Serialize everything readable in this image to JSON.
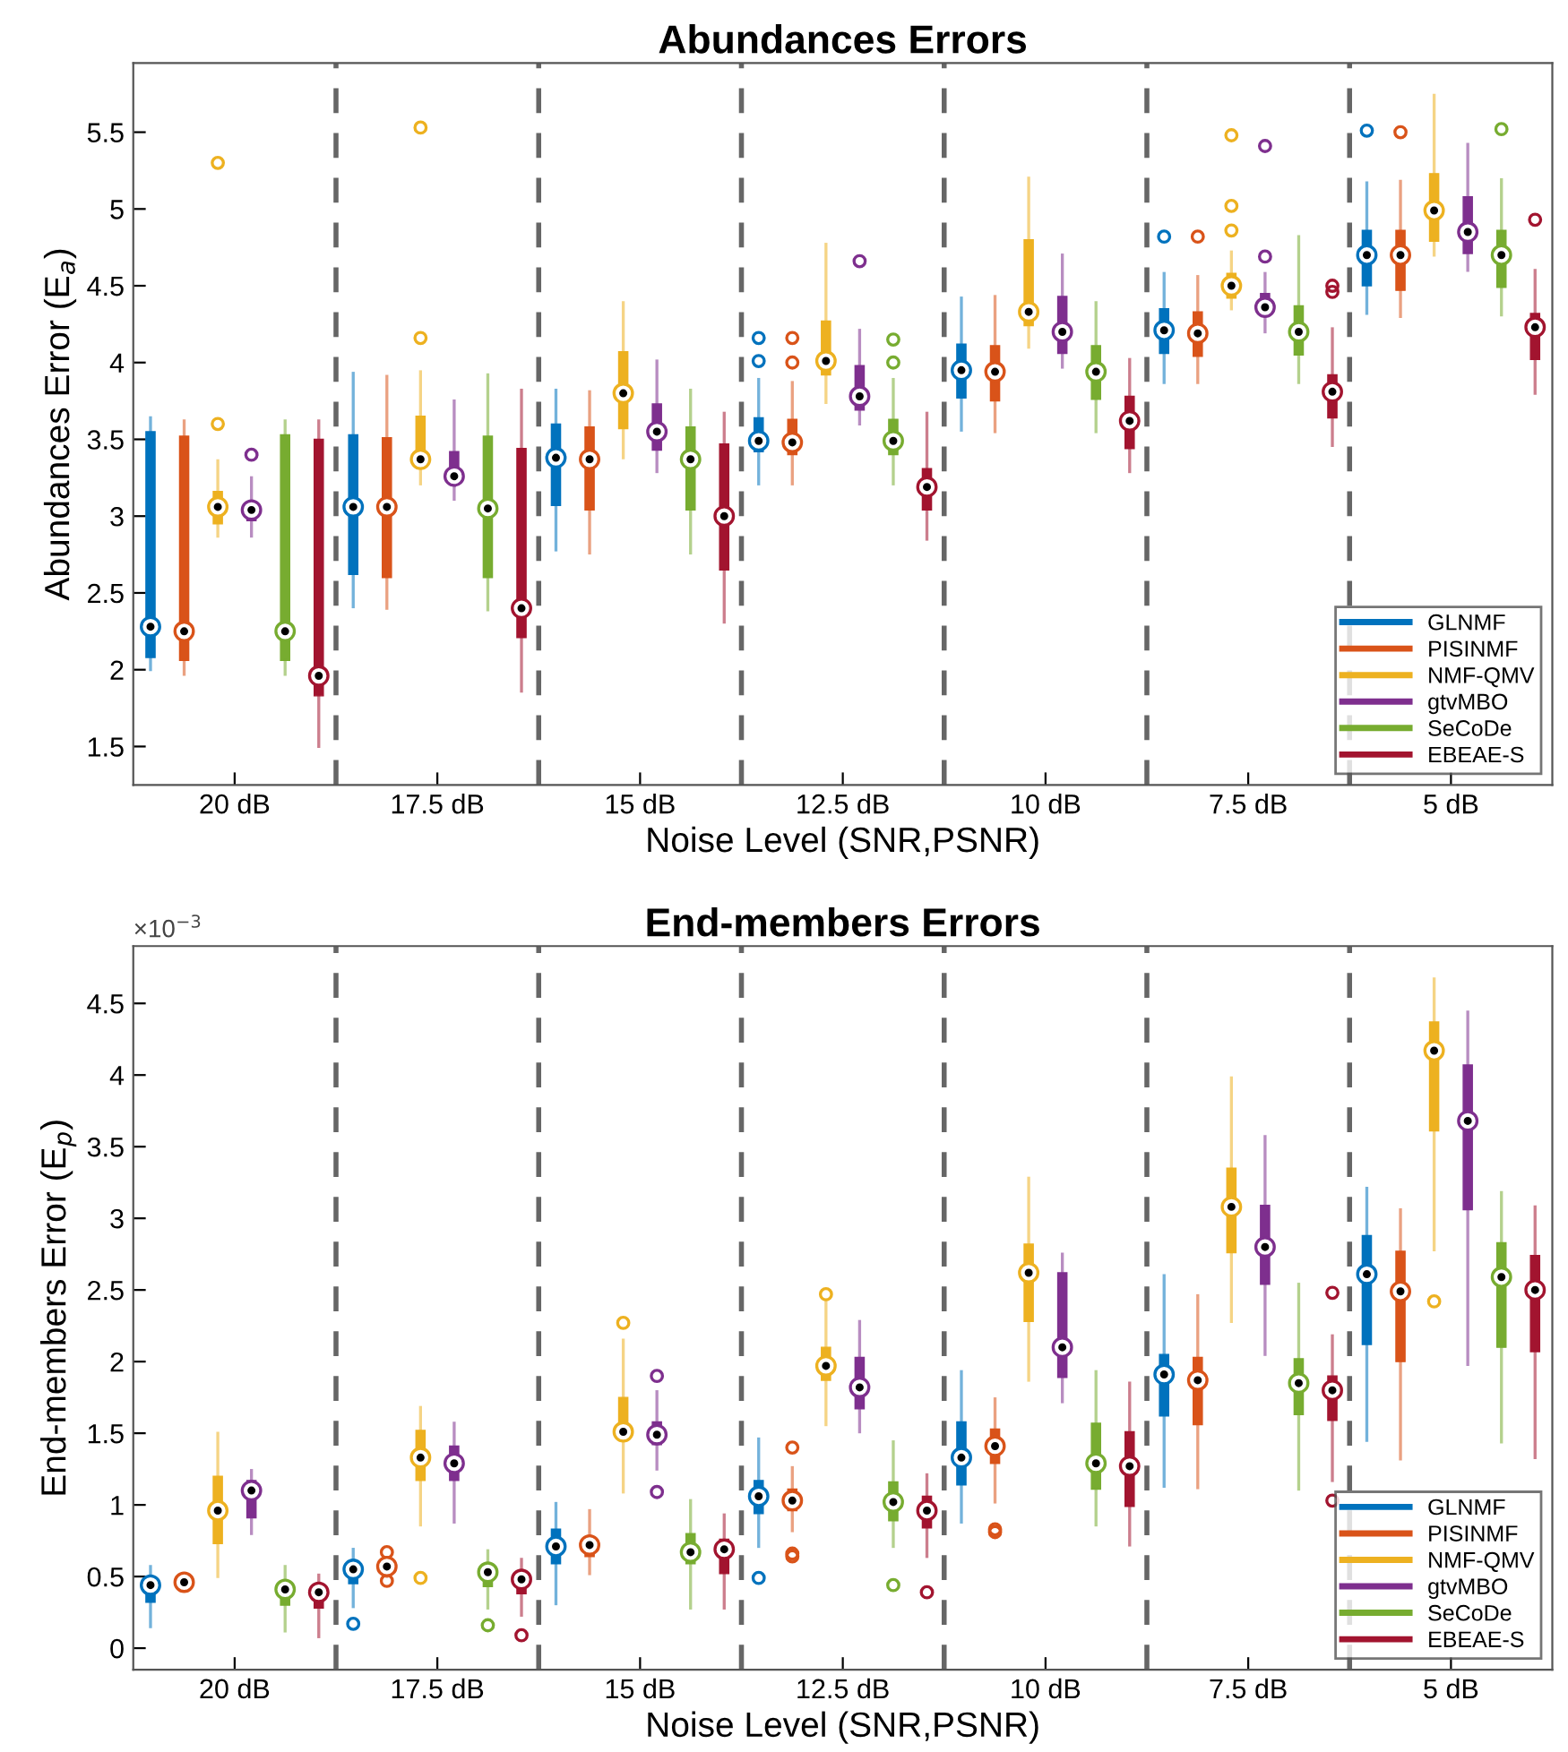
{
  "chart_data": [
    {
      "type": "box",
      "title": "Abundances Errors",
      "xlabel": "Noise Level (SNR,PSNR)",
      "ylabel": "Abundances Error (E$_{a}$)",
      "categories": [
        "20 dB",
        "17.5 dB",
        "15 dB",
        "12.5 dB",
        "10 dB",
        "7.5 dB",
        "5 dB"
      ],
      "ylim": [
        1.25,
        5.95
      ],
      "yticks": [
        1.5,
        2,
        2.5,
        3,
        3.5,
        4,
        4.5,
        5,
        5.5
      ],
      "grid": false,
      "legend": "bottom right",
      "marker": "circle",
      "series": [
        {
          "name": "GLNMF",
          "color": "#0072bd",
          "boxes": [
            {
              "low": 2.0,
              "q1": 2.08,
              "median": 2.28,
              "q3": 3.55,
              "high": 3.64
            },
            {
              "low": 2.41,
              "q1": 2.62,
              "median": 3.06,
              "q3": 3.53,
              "high": 3.93
            },
            {
              "low": 2.78,
              "q1": 3.07,
              "median": 3.38,
              "q3": 3.6,
              "high": 3.82
            },
            {
              "low": 3.21,
              "q1": 3.42,
              "median": 3.49,
              "q3": 3.64,
              "high": 3.89,
              "outliers": [
                4.01,
                4.16
              ]
            },
            {
              "low": 3.56,
              "q1": 3.77,
              "median": 3.95,
              "q3": 4.12,
              "high": 4.42
            },
            {
              "low": 3.87,
              "q1": 4.06,
              "median": 4.21,
              "q3": 4.35,
              "high": 4.58,
              "outliers": [
                4.82
              ]
            },
            {
              "low": 4.32,
              "q1": 4.5,
              "median": 4.7,
              "q3": 4.86,
              "high": 5.17,
              "outliers": [
                5.51
              ]
            }
          ]
        },
        {
          "name": "PISINMF",
          "color": "#d95319",
          "boxes": [
            {
              "low": 1.97,
              "q1": 2.06,
              "median": 2.25,
              "q3": 3.52,
              "high": 3.62
            },
            {
              "low": 2.4,
              "q1": 2.6,
              "median": 3.06,
              "q3": 3.51,
              "high": 3.91
            },
            {
              "low": 2.76,
              "q1": 3.04,
              "median": 3.37,
              "q3": 3.58,
              "high": 3.81
            },
            {
              "low": 3.21,
              "q1": 3.4,
              "median": 3.48,
              "q3": 3.63,
              "high": 3.87,
              "outliers": [
                4.0,
                4.16
              ]
            },
            {
              "low": 3.55,
              "q1": 3.75,
              "median": 3.94,
              "q3": 4.11,
              "high": 4.43
            },
            {
              "low": 3.87,
              "q1": 4.04,
              "median": 4.19,
              "q3": 4.33,
              "high": 4.56,
              "outliers": [
                4.82
              ]
            },
            {
              "low": 4.3,
              "q1": 4.47,
              "median": 4.7,
              "q3": 4.86,
              "high": 5.18,
              "outliers": [
                5.5
              ]
            }
          ]
        },
        {
          "name": "NMF-QMV",
          "color": "#edb120",
          "boxes": [
            {
              "low": 2.87,
              "q1": 2.95,
              "median": 3.06,
              "q3": 3.16,
              "high": 3.36,
              "outliers": [
                3.6,
                5.3
              ]
            },
            {
              "low": 3.21,
              "q1": 3.33,
              "median": 3.37,
              "q3": 3.65,
              "high": 3.94,
              "outliers": [
                4.16,
                5.53
              ]
            },
            {
              "low": 3.38,
              "q1": 3.57,
              "median": 3.8,
              "q3": 4.07,
              "high": 4.39
            },
            {
              "low": 3.74,
              "q1": 3.92,
              "median": 4.01,
              "q3": 4.27,
              "high": 4.77
            },
            {
              "low": 4.1,
              "q1": 4.24,
              "median": 4.33,
              "q3": 4.8,
              "high": 5.2
            },
            {
              "low": 4.35,
              "q1": 4.42,
              "median": 4.5,
              "q3": 4.58,
              "high": 4.72,
              "outliers": [
                4.86,
                5.02,
                5.48
              ]
            },
            {
              "low": 4.7,
              "q1": 4.79,
              "median": 4.99,
              "q3": 5.23,
              "high": 5.74
            }
          ]
        },
        {
          "name": "gtvMBO",
          "color": "#7e2f8e",
          "boxes": [
            {
              "low": 2.87,
              "q1": 2.97,
              "median": 3.04,
              "q3": 3.08,
              "high": 3.25,
              "outliers": [
                3.4
              ]
            },
            {
              "low": 3.11,
              "q1": 3.21,
              "median": 3.26,
              "q3": 3.42,
              "high": 3.75
            },
            {
              "low": 3.29,
              "q1": 3.43,
              "median": 3.55,
              "q3": 3.73,
              "high": 4.01
            },
            {
              "low": 3.6,
              "q1": 3.69,
              "median": 3.78,
              "q3": 3.98,
              "high": 4.21,
              "outliers": [
                4.66
              ]
            },
            {
              "low": 3.97,
              "q1": 4.06,
              "median": 4.2,
              "q3": 4.43,
              "high": 4.7
            },
            {
              "low": 4.2,
              "q1": 4.32,
              "median": 4.36,
              "q3": 4.45,
              "high": 4.58,
              "outliers": [
                4.69,
                5.41
              ]
            },
            {
              "low": 4.6,
              "q1": 4.71,
              "median": 4.85,
              "q3": 5.08,
              "high": 5.42
            }
          ]
        },
        {
          "name": "SeCoDe",
          "color": "#77ac30",
          "boxes": [
            {
              "low": 1.97,
              "q1": 2.06,
              "median": 2.25,
              "q3": 3.53,
              "high": 3.62
            },
            {
              "low": 2.39,
              "q1": 2.6,
              "median": 3.05,
              "q3": 3.52,
              "high": 3.92
            },
            {
              "low": 2.76,
              "q1": 3.04,
              "median": 3.37,
              "q3": 3.58,
              "high": 3.82
            },
            {
              "low": 3.21,
              "q1": 3.4,
              "median": 3.49,
              "q3": 3.63,
              "high": 3.89,
              "outliers": [
                4.0,
                4.15
              ]
            },
            {
              "low": 3.55,
              "q1": 3.76,
              "median": 3.94,
              "q3": 4.11,
              "high": 4.39
            },
            {
              "low": 3.87,
              "q1": 4.05,
              "median": 4.2,
              "q3": 4.37,
              "high": 4.82
            },
            {
              "low": 4.31,
              "q1": 4.49,
              "median": 4.7,
              "q3": 4.86,
              "high": 5.19,
              "outliers": [
                5.52
              ]
            }
          ]
        },
        {
          "name": "EBEAE-S",
          "color": "#a2142f",
          "boxes": [
            {
              "low": 1.5,
              "q1": 1.83,
              "median": 1.96,
              "q3": 3.5,
              "high": 3.62
            },
            {
              "low": 1.86,
              "q1": 2.21,
              "median": 2.4,
              "q3": 3.44,
              "high": 3.82
            },
            {
              "low": 2.31,
              "q1": 2.65,
              "median": 3.0,
              "q3": 3.47,
              "high": 3.67
            },
            {
              "low": 2.85,
              "q1": 3.04,
              "median": 3.19,
              "q3": 3.31,
              "high": 3.67
            },
            {
              "low": 3.29,
              "q1": 3.44,
              "median": 3.62,
              "q3": 3.78,
              "high": 4.02
            },
            {
              "low": 3.46,
              "q1": 3.64,
              "median": 3.81,
              "q3": 3.92,
              "high": 4.22,
              "outliers": [
                4.46,
                4.5
              ]
            },
            {
              "low": 3.8,
              "q1": 4.02,
              "median": 4.23,
              "q3": 4.32,
              "high": 4.6,
              "outliers": [
                4.93
              ]
            }
          ]
        }
      ]
    },
    {
      "type": "box",
      "title": "End-members Errors",
      "xlabel": "Noise Level (SNR,PSNR)",
      "ylabel": "End-members Error (E$_{p}$)",
      "annotations": [
        "×10$^{−3}$"
      ],
      "categories": [
        "20 dB",
        "17.5 dB",
        "15 dB",
        "12.5 dB",
        "10 dB",
        "7.5 dB",
        "5 dB"
      ],
      "ylim": [
        -0.15,
        4.9
      ],
      "yticks": [
        0,
        0.5,
        1,
        1.5,
        2,
        2.5,
        3,
        3.5,
        4,
        4.5
      ],
      "grid": false,
      "legend": "bottom right",
      "marker": "circle",
      "series": [
        {
          "name": "GLNMF",
          "color": "#0072bd",
          "boxes": [
            {
              "low": 0.15,
              "q1": 0.32,
              "median": 0.44,
              "q3": 0.48,
              "high": 0.57
            },
            {
              "low": 0.29,
              "q1": 0.45,
              "median": 0.55,
              "q3": 0.58,
              "high": 0.69,
              "outliers": [
                0.17
              ]
            },
            {
              "low": 0.31,
              "q1": 0.59,
              "median": 0.71,
              "q3": 0.83,
              "high": 1.01
            },
            {
              "low": 0.71,
              "q1": 0.94,
              "median": 1.06,
              "q3": 1.17,
              "high": 1.46,
              "outliers": [
                0.49
              ]
            },
            {
              "low": 0.88,
              "q1": 1.14,
              "median": 1.33,
              "q3": 1.58,
              "high": 1.93
            },
            {
              "low": 1.13,
              "q1": 1.62,
              "median": 1.91,
              "q3": 2.05,
              "high": 2.6
            },
            {
              "low": 1.45,
              "q1": 2.12,
              "median": 2.61,
              "q3": 2.88,
              "high": 3.21
            }
          ]
        },
        {
          "name": "PISINMF",
          "color": "#d95319",
          "boxes": [
            {
              "low": 0.41,
              "q1": 0.43,
              "median": 0.46,
              "q3": 0.5,
              "high": 0.52
            },
            {
              "low": 0.5,
              "q1": 0.52,
              "median": 0.57,
              "q3": 0.6,
              "high": 0.62,
              "outliers": [
                0.47,
                0.67
              ]
            },
            {
              "low": 0.52,
              "q1": 0.64,
              "median": 0.72,
              "q3": 0.77,
              "high": 0.96
            },
            {
              "low": 0.82,
              "q1": 0.96,
              "median": 1.03,
              "q3": 1.11,
              "high": 1.26,
              "outliers": [
                0.64,
                0.66,
                1.4
              ]
            },
            {
              "low": 1.02,
              "q1": 1.29,
              "median": 1.41,
              "q3": 1.53,
              "high": 1.74,
              "outliers": [
                0.81,
                0.83
              ]
            },
            {
              "low": 1.12,
              "q1": 1.56,
              "median": 1.87,
              "q3": 2.03,
              "high": 2.46
            },
            {
              "low": 1.32,
              "q1": 2.0,
              "median": 2.49,
              "q3": 2.77,
              "high": 3.06
            }
          ]
        },
        {
          "name": "NMF-QMV",
          "color": "#edb120",
          "boxes": [
            {
              "low": 0.5,
              "q1": 0.73,
              "median": 0.96,
              "q3": 1.2,
              "high": 1.5
            },
            {
              "low": 0.86,
              "q1": 1.17,
              "median": 1.33,
              "q3": 1.52,
              "high": 1.68,
              "outliers": [
                0.49
              ]
            },
            {
              "low": 1.09,
              "q1": 1.45,
              "median": 1.51,
              "q3": 1.75,
              "high": 2.15,
              "outliers": [
                2.27
              ]
            },
            {
              "low": 1.56,
              "q1": 1.87,
              "median": 1.97,
              "q3": 2.1,
              "high": 2.42,
              "outliers": [
                2.47
              ]
            },
            {
              "low": 1.87,
              "q1": 2.28,
              "median": 2.62,
              "q3": 2.82,
              "high": 3.28
            },
            {
              "low": 2.28,
              "q1": 2.76,
              "median": 3.08,
              "q3": 3.35,
              "high": 3.98
            },
            {
              "low": 2.78,
              "q1": 3.61,
              "median": 4.17,
              "q3": 4.37,
              "high": 4.67,
              "outliers": [
                2.42
              ]
            }
          ]
        },
        {
          "name": "gtvMBO",
          "color": "#7e2f8e",
          "boxes": [
            {
              "low": 0.8,
              "q1": 0.91,
              "median": 1.1,
              "q3": 1.17,
              "high": 1.24
            },
            {
              "low": 0.88,
              "q1": 1.17,
              "median": 1.29,
              "q3": 1.41,
              "high": 1.57
            },
            {
              "low": 1.25,
              "q1": 1.42,
              "median": 1.49,
              "q3": 1.58,
              "high": 1.79,
              "outliers": [
                1.09,
                1.9
              ]
            },
            {
              "low": 1.51,
              "q1": 1.67,
              "median": 1.82,
              "q3": 2.03,
              "high": 2.28
            },
            {
              "low": 1.72,
              "q1": 1.89,
              "median": 2.1,
              "q3": 2.62,
              "high": 2.75
            },
            {
              "low": 2.05,
              "q1": 2.54,
              "median": 2.8,
              "q3": 3.09,
              "high": 3.57
            },
            {
              "low": 1.98,
              "q1": 3.06,
              "median": 3.68,
              "q3": 4.07,
              "high": 4.44
            }
          ]
        },
        {
          "name": "SeCoDe",
          "color": "#77ac30",
          "boxes": [
            {
              "low": 0.12,
              "q1": 0.3,
              "median": 0.41,
              "q3": 0.45,
              "high": 0.57
            },
            {
              "low": 0.28,
              "q1": 0.43,
              "median": 0.53,
              "q3": 0.57,
              "high": 0.68,
              "outliers": [
                0.16
              ]
            },
            {
              "low": 0.28,
              "q1": 0.59,
              "median": 0.67,
              "q3": 0.8,
              "high": 1.03
            },
            {
              "low": 0.71,
              "q1": 0.89,
              "median": 1.02,
              "q3": 1.16,
              "high": 1.44,
              "outliers": [
                0.44
              ]
            },
            {
              "low": 0.86,
              "q1": 1.11,
              "median": 1.29,
              "q3": 1.57,
              "high": 1.93
            },
            {
              "low": 1.11,
              "q1": 1.63,
              "median": 1.85,
              "q3": 2.02,
              "high": 2.54
            },
            {
              "low": 1.44,
              "q1": 2.1,
              "median": 2.59,
              "q3": 2.83,
              "high": 3.18
            }
          ]
        },
        {
          "name": "EBEAE-S",
          "color": "#a2142f",
          "boxes": [
            {
              "low": 0.08,
              "q1": 0.28,
              "median": 0.39,
              "q3": 0.43,
              "high": 0.51
            },
            {
              "low": 0.23,
              "q1": 0.38,
              "median": 0.48,
              "q3": 0.52,
              "high": 0.62,
              "outliers": [
                0.09
              ]
            },
            {
              "low": 0.28,
              "q1": 0.52,
              "median": 0.69,
              "q3": 0.76,
              "high": 0.93
            },
            {
              "low": 0.64,
              "q1": 0.84,
              "median": 0.96,
              "q3": 1.06,
              "high": 1.21,
              "outliers": [
                0.39
              ]
            },
            {
              "low": 0.72,
              "q1": 0.99,
              "median": 1.27,
              "q3": 1.51,
              "high": 1.85
            },
            {
              "low": 1.17,
              "q1": 1.59,
              "median": 1.8,
              "q3": 1.9,
              "high": 2.18,
              "outliers": [
                1.03,
                2.48
              ]
            },
            {
              "low": 1.33,
              "q1": 2.07,
              "median": 2.5,
              "q3": 2.74,
              "high": 3.08
            }
          ]
        }
      ]
    }
  ]
}
